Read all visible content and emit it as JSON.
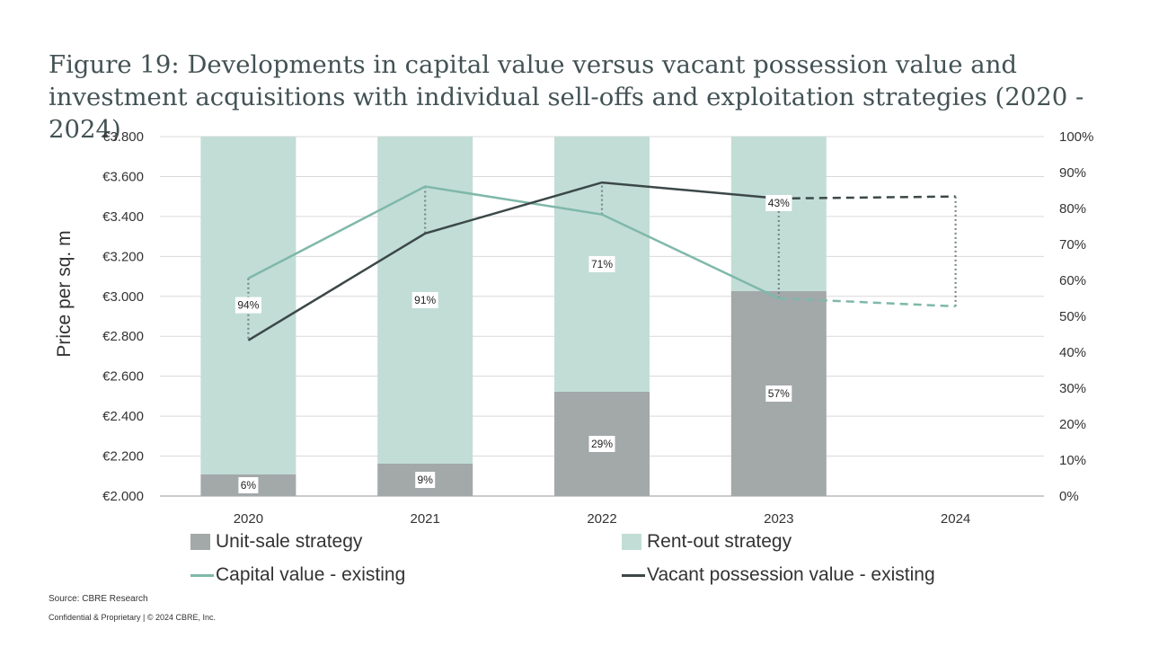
{
  "title": "Figure 19: Developments in capital value versus vacant possession value and investment acquisitions with individual sell-offs and exploitation strategies (2020 - 2024)",
  "source": "Source: CBRE Research",
  "confidential": "Confidential & Proprietary | © 2024 CBRE, Inc.",
  "chart_data": {
    "type": "bar",
    "categories": [
      "2020",
      "2021",
      "2022",
      "2023",
      "2024"
    ],
    "ylabel": "Price per sq. m",
    "ylim": [
      2000,
      3800
    ],
    "y2lim": [
      0,
      100
    ],
    "y_ticks": [
      "€2.000",
      "€2.200",
      "€2.400",
      "€2.600",
      "€2.800",
      "€3.000",
      "€3.200",
      "€3.400",
      "€3.600",
      "€3.800"
    ],
    "y2_ticks": [
      "0%",
      "10%",
      "20%",
      "30%",
      "40%",
      "50%",
      "60%",
      "70%",
      "80%",
      "90%",
      "100%"
    ],
    "grid": true,
    "legend_position": "bottom",
    "bar_series": [
      {
        "name": "Unit-sale strategy",
        "values": [
          6,
          9,
          29,
          57,
          null
        ],
        "labels": [
          "6%",
          "9%",
          "29%",
          "57%",
          ""
        ],
        "color": "#a3a8a9"
      },
      {
        "name": "Rent-out strategy",
        "values": [
          94,
          91,
          71,
          43,
          null
        ],
        "labels": [
          "94%",
          "91%",
          "71%",
          "43%",
          ""
        ],
        "color": "#c2ddd6"
      }
    ],
    "line_series": [
      {
        "name": "Capital value - existing",
        "values": [
          3090,
          3550,
          3410,
          2990,
          2950
        ],
        "projected_from": 3,
        "color": "#7fb8a9"
      },
      {
        "name": "Vacant possession value - existing",
        "values": [
          2780,
          3315,
          3570,
          3490,
          3500
        ],
        "projected_from": 3,
        "color": "#3c4848"
      }
    ]
  }
}
